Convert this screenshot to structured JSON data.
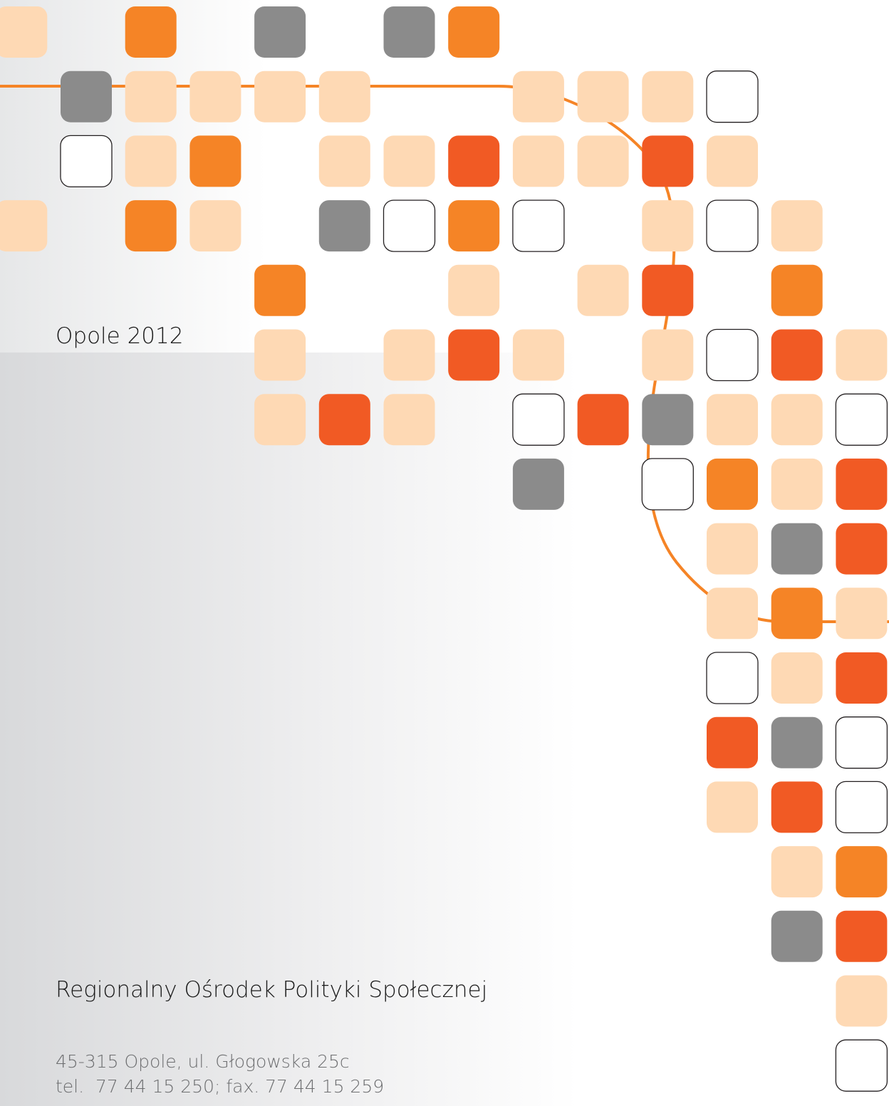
{
  "place_year": "Opole 2012",
  "organization": "Regionalny Ośrodek Polityki Społecznej",
  "address": [
    "45-315 Opole, ul. Głogowska 25c",
    "tel.  77 44 15 250; fax. 77 44 15 259"
  ]
}
